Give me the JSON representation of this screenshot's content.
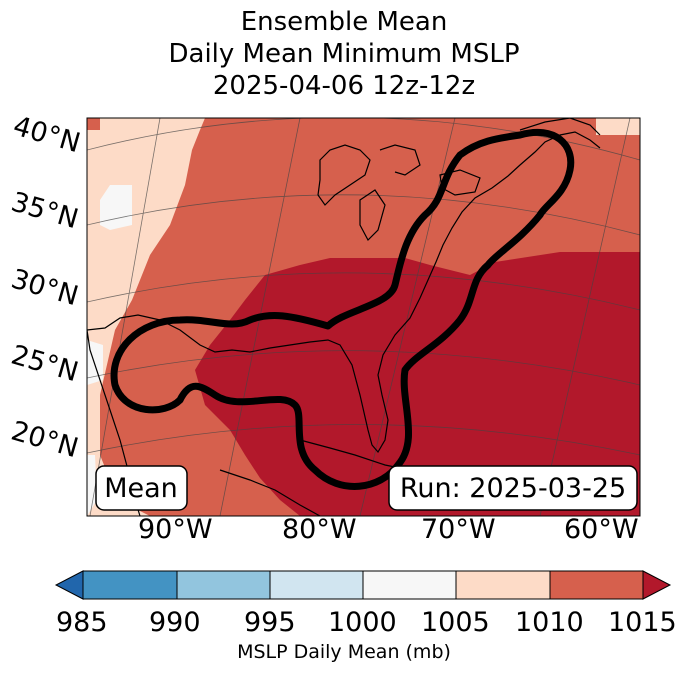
{
  "title": {
    "line1": "Ensemble Mean",
    "line2": "Daily Mean Minimum MSLP",
    "line3": "2025-04-06 12z-12z"
  },
  "lat_labels": [
    "40°N",
    "35°N",
    "30°N",
    "25°N",
    "20°N"
  ],
  "lon_labels": [
    "90°W",
    "80°W",
    "70°W",
    "60°W"
  ],
  "boxes": {
    "left": "Mean",
    "right": "Run: 2025-03-25"
  },
  "colorbar": {
    "ticks": [
      "985",
      "990",
      "995",
      "1000",
      "1005",
      "1010",
      "1015"
    ],
    "colors": [
      "#2166ac",
      "#4393c3",
      "#92c5de",
      "#d1e5f0",
      "#f7f7f7",
      "#fddbc7",
      "#d6604d",
      "#b2182b"
    ],
    "label": "MSLP Daily Mean (mb)"
  },
  "map_colors": {
    "light": "#fddbc7",
    "medium": "#d6604d",
    "dark": "#b2182b",
    "white": "#f7f7f7"
  }
}
